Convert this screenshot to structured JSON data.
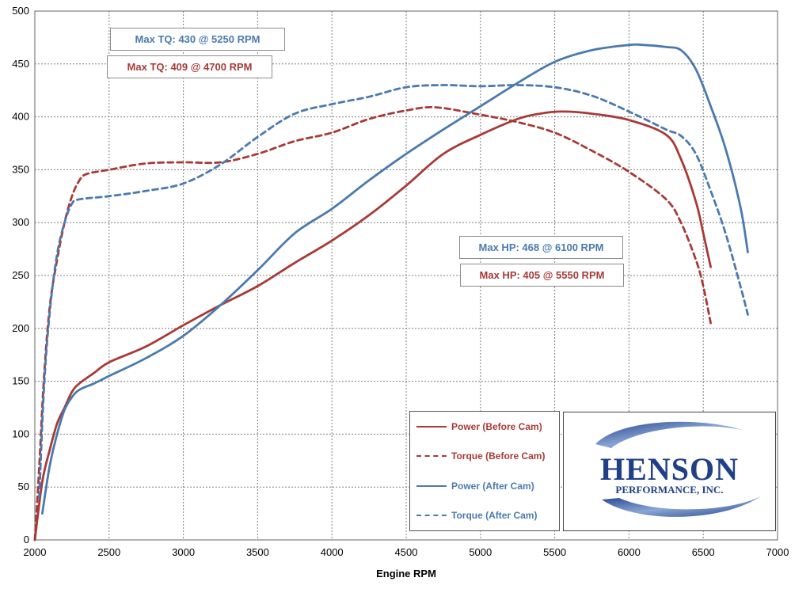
{
  "chart_data": {
    "type": "line",
    "xlabel": "Engine RPM",
    "ylabel": "",
    "xlim": [
      2000,
      7000
    ],
    "ylim": [
      0,
      500
    ],
    "grid": true,
    "legend": "bottom-right",
    "xticks": [
      "2000",
      "2500",
      "3000",
      "3500",
      "4000",
      "4500",
      "5000",
      "5500",
      "6000",
      "6500",
      "7000"
    ],
    "yticks": [
      "0",
      "50",
      "100",
      "150",
      "200",
      "250",
      "300",
      "350",
      "400",
      "450",
      "500"
    ],
    "series": [
      {
        "name": "Power (Before Cam)",
        "color": "#a83a36",
        "dash": "solid",
        "points": [
          [
            2000,
            0
          ],
          [
            2050,
            55
          ],
          [
            2100,
            85
          ],
          [
            2150,
            110
          ],
          [
            2200,
            125
          ],
          [
            2250,
            140
          ],
          [
            2300,
            148
          ],
          [
            2400,
            158
          ],
          [
            2500,
            168
          ],
          [
            2750,
            183
          ],
          [
            3000,
            203
          ],
          [
            3250,
            222
          ],
          [
            3500,
            240
          ],
          [
            3750,
            262
          ],
          [
            4000,
            283
          ],
          [
            4250,
            307
          ],
          [
            4500,
            335
          ],
          [
            4750,
            365
          ],
          [
            5000,
            383
          ],
          [
            5250,
            398
          ],
          [
            5400,
            403
          ],
          [
            5550,
            405
          ],
          [
            5750,
            403
          ],
          [
            6000,
            397
          ],
          [
            6250,
            383
          ],
          [
            6350,
            360
          ],
          [
            6450,
            320
          ],
          [
            6500,
            290
          ],
          [
            6550,
            258
          ]
        ]
      },
      {
        "name": "Torque (Before Cam)",
        "color": "#a83a36",
        "dash": "dashed",
        "points": [
          [
            2000,
            0
          ],
          [
            2030,
            70
          ],
          [
            2060,
            150
          ],
          [
            2100,
            220
          ],
          [
            2150,
            265
          ],
          [
            2200,
            300
          ],
          [
            2250,
            325
          ],
          [
            2300,
            340
          ],
          [
            2350,
            346
          ],
          [
            2500,
            350
          ],
          [
            2750,
            356
          ],
          [
            3000,
            357
          ],
          [
            3250,
            357
          ],
          [
            3500,
            365
          ],
          [
            3750,
            377
          ],
          [
            4000,
            385
          ],
          [
            4250,
            398
          ],
          [
            4500,
            406
          ],
          [
            4700,
            409
          ],
          [
            5000,
            402
          ],
          [
            5250,
            395
          ],
          [
            5500,
            385
          ],
          [
            5750,
            368
          ],
          [
            6000,
            348
          ],
          [
            6250,
            322
          ],
          [
            6350,
            300
          ],
          [
            6450,
            265
          ],
          [
            6500,
            240
          ],
          [
            6550,
            205
          ]
        ]
      },
      {
        "name": "Power (After Cam)",
        "color": "#4a7aaf",
        "dash": "solid",
        "points": [
          [
            2050,
            25
          ],
          [
            2100,
            70
          ],
          [
            2150,
            100
          ],
          [
            2200,
            123
          ],
          [
            2250,
            135
          ],
          [
            2300,
            142
          ],
          [
            2400,
            148
          ],
          [
            2500,
            155
          ],
          [
            2750,
            172
          ],
          [
            3000,
            193
          ],
          [
            3250,
            222
          ],
          [
            3500,
            255
          ],
          [
            3750,
            290
          ],
          [
            4000,
            313
          ],
          [
            4250,
            340
          ],
          [
            4500,
            365
          ],
          [
            4750,
            388
          ],
          [
            5000,
            410
          ],
          [
            5250,
            432
          ],
          [
            5500,
            452
          ],
          [
            5750,
            463
          ],
          [
            6000,
            468
          ],
          [
            6100,
            468
          ],
          [
            6250,
            466
          ],
          [
            6350,
            463
          ],
          [
            6450,
            445
          ],
          [
            6550,
            410
          ],
          [
            6650,
            370
          ],
          [
            6750,
            315
          ],
          [
            6800,
            272
          ]
        ]
      },
      {
        "name": "Torque (After Cam)",
        "color": "#4a7aaf",
        "dash": "dashed",
        "points": [
          [
            2030,
            40
          ],
          [
            2060,
            140
          ],
          [
            2100,
            215
          ],
          [
            2150,
            270
          ],
          [
            2200,
            300
          ],
          [
            2250,
            318
          ],
          [
            2300,
            322
          ],
          [
            2500,
            325
          ],
          [
            2750,
            330
          ],
          [
            3000,
            337
          ],
          [
            3250,
            355
          ],
          [
            3500,
            381
          ],
          [
            3750,
            403
          ],
          [
            4000,
            412
          ],
          [
            4250,
            419
          ],
          [
            4500,
            428
          ],
          [
            4750,
            430
          ],
          [
            5000,
            429
          ],
          [
            5250,
            430
          ],
          [
            5500,
            428
          ],
          [
            5750,
            420
          ],
          [
            6000,
            405
          ],
          [
            6250,
            388
          ],
          [
            6350,
            382
          ],
          [
            6450,
            365
          ],
          [
            6550,
            330
          ],
          [
            6650,
            290
          ],
          [
            6750,
            240
          ],
          [
            6800,
            213
          ]
        ]
      }
    ]
  },
  "annotations": [
    {
      "text": "Max TQ: 430 @ 5250 RPM",
      "color": "#4a7aaf"
    },
    {
      "text": "Max TQ: 409 @ 4700 RPM",
      "color": "#a83a36"
    },
    {
      "text": "Max HP: 468 @ 6100 RPM",
      "color": "#4a7aaf"
    },
    {
      "text": "Max HP: 405 @ 5550 RPM",
      "color": "#a83a36"
    }
  ],
  "legend": {
    "items": [
      {
        "label": "Power (Before Cam)",
        "color": "#a83a36",
        "style": "solid"
      },
      {
        "label": "Torque (Before Cam)",
        "color": "#a83a36",
        "style": "dashed"
      },
      {
        "label": "Power (After Cam)",
        "color": "#4a7aaf",
        "style": "solid"
      },
      {
        "label": "Torque (After Cam)",
        "color": "#4a7aaf",
        "style": "dashed"
      }
    ]
  },
  "logo": {
    "name": "HENSON",
    "tagline": "PERFORMANCE, INC.",
    "color": "#1f3f88"
  }
}
